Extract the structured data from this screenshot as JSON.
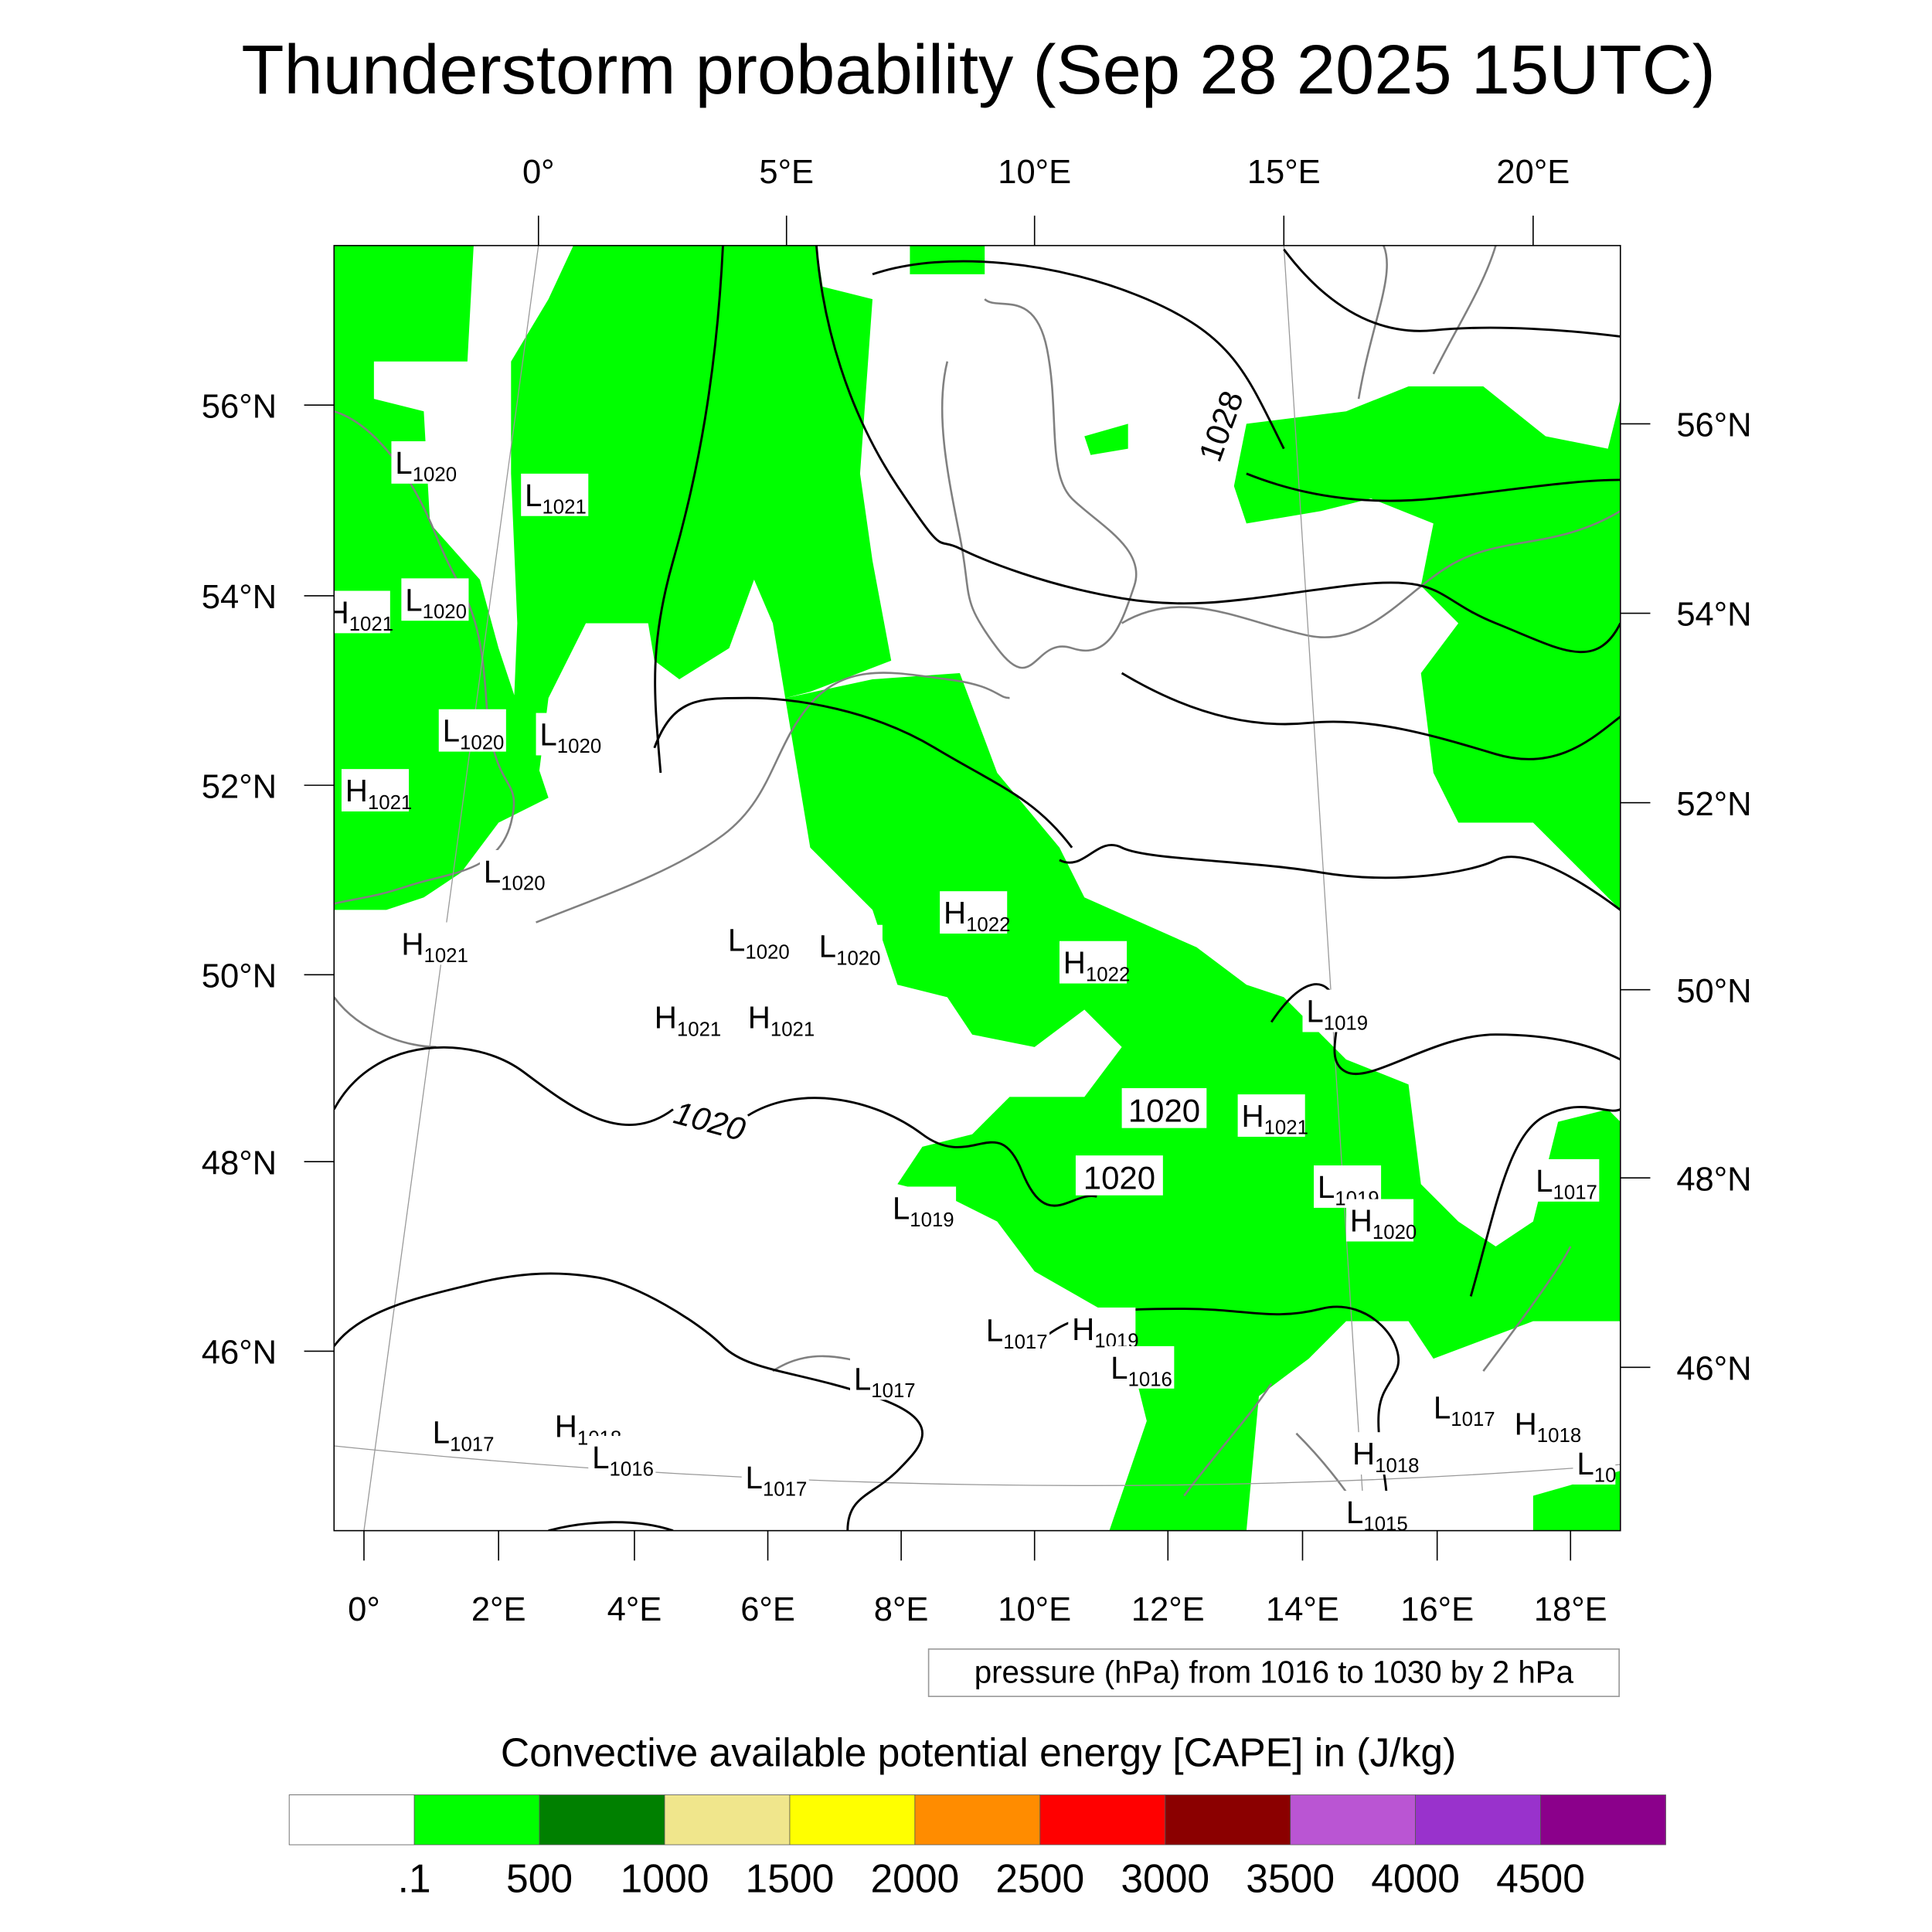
{
  "title": "Thunderstorm probability (Sep 28 2025 15UTC)",
  "axes": {
    "top_lon": [
      "0°",
      "5°E",
      "10°E",
      "15°E",
      "20°E"
    ],
    "bottom_lon": [
      "0°",
      "2°E",
      "4°E",
      "6°E",
      "8°E",
      "10°E",
      "12°E",
      "14°E",
      "16°E",
      "18°E"
    ],
    "left_lat": [
      "56°N",
      "54°N",
      "52°N",
      "50°N",
      "48°N",
      "46°N"
    ],
    "right_lat": [
      "56°N",
      "54°N",
      "52°N",
      "50°N",
      "48°N",
      "46°N"
    ]
  },
  "contour_labels": [
    "1028",
    "1020",
    "1020",
    "1020"
  ],
  "pressure_centers": [
    {
      "type": "L",
      "value": "1020"
    },
    {
      "type": "L",
      "value": "1021"
    },
    {
      "type": "H",
      "value": "1021"
    },
    {
      "type": "L",
      "value": "1020"
    },
    {
      "type": "L",
      "value": "1020"
    },
    {
      "type": "L",
      "value": "1020"
    },
    {
      "type": "H",
      "value": "1021"
    },
    {
      "type": "L",
      "value": "1020"
    },
    {
      "type": "H",
      "value": "1021"
    },
    {
      "type": "L",
      "value": "1020"
    },
    {
      "type": "L",
      "value": "1020"
    },
    {
      "type": "H",
      "value": "1021"
    },
    {
      "type": "H",
      "value": "1021"
    },
    {
      "type": "H",
      "value": "1022"
    },
    {
      "type": "H",
      "value": "1022"
    },
    {
      "type": "L",
      "value": "1019"
    },
    {
      "type": "H",
      "value": "1021"
    },
    {
      "type": "L",
      "value": "1019"
    },
    {
      "type": "H",
      "value": "1020"
    },
    {
      "type": "L",
      "value": "1017"
    },
    {
      "type": "L",
      "value": "1019"
    },
    {
      "type": "L",
      "value": "1017"
    },
    {
      "type": "H",
      "value": "1019"
    },
    {
      "type": "L",
      "value": "1016"
    },
    {
      "type": "L",
      "value": "1017"
    },
    {
      "type": "L",
      "value": "1017"
    },
    {
      "type": "H",
      "value": "1018"
    },
    {
      "type": "L",
      "value": "1016"
    },
    {
      "type": "L",
      "value": "1017"
    },
    {
      "type": "L",
      "value": "1017"
    },
    {
      "type": "H",
      "value": "1018"
    },
    {
      "type": "H",
      "value": "1018"
    },
    {
      "type": "L",
      "value": "1015"
    },
    {
      "type": "L",
      "value": "10"
    }
  ],
  "contour_legend": "pressure (hPa) from 1016 to 1030 by 2 hPa",
  "colorbar": {
    "title": "Convective available potential energy [CAPE] in (J/kg)",
    "colors": [
      "#ffffff",
      "#00ff00",
      "#008000",
      "#f0e68c",
      "#ffff00",
      "#ff8c00",
      "#ff0000",
      "#8b0000",
      "#ba55d3",
      "#9932cc",
      "#8b008b"
    ],
    "labels": [
      ".1",
      "500",
      "1000",
      "1500",
      "2000",
      "2500",
      "3000",
      "3500",
      "4000",
      "4500"
    ]
  },
  "colors": {
    "cape_fill": "#00ff00",
    "coast": "#808080",
    "isobar": "#000000"
  }
}
